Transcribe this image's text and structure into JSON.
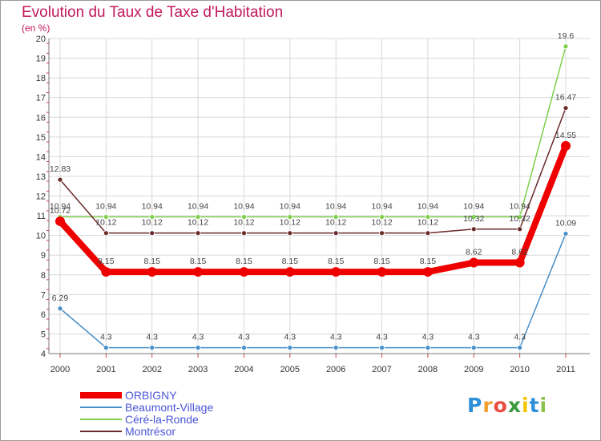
{
  "chart_data": {
    "type": "line",
    "title": "Evolution du Taux de Taxe d'Habitation",
    "subtitle": "(en %)",
    "x": [
      "2000",
      "2001",
      "2002",
      "2003",
      "2004",
      "2005",
      "2006",
      "2007",
      "2008",
      "2009",
      "2010",
      "2011"
    ],
    "ylim": [
      4,
      20
    ],
    "yticks": [
      4,
      5,
      6,
      7,
      8,
      9,
      10,
      11,
      12,
      13,
      14,
      15,
      16,
      17,
      18,
      19,
      20
    ],
    "grid": true,
    "legend_position": "bottom-left",
    "series": [
      {
        "name": "Beaumont-Village",
        "color": "#4a90c8",
        "values": [
          6.29,
          4.3,
          4.3,
          4.3,
          4.3,
          4.3,
          4.3,
          4.3,
          4.3,
          4.3,
          4.3,
          10.09
        ],
        "labels": [
          "6.29",
          "4.3",
          "4.3",
          "4.3",
          "4.3",
          "4.3",
          "4.3",
          "4.3",
          "4.3",
          "4.3",
          "4.3",
          "10.09"
        ]
      },
      {
        "name": "Céré-la-Ronde",
        "color": "#7ed04a",
        "values": [
          10.94,
          10.94,
          10.94,
          10.94,
          10.94,
          10.94,
          10.94,
          10.94,
          10.94,
          10.94,
          10.94,
          19.6
        ],
        "labels": [
          "10.94",
          "10.94",
          "10.94",
          "10.94",
          "10.94",
          "10.94",
          "10.94",
          "10.94",
          "10.94",
          "10.94",
          "10.94",
          "19.6"
        ]
      },
      {
        "name": "Montrésor",
        "color": "#6b2a2a",
        "values": [
          12.83,
          10.12,
          10.12,
          10.12,
          10.12,
          10.12,
          10.12,
          10.12,
          10.12,
          10.32,
          10.32,
          16.47
        ],
        "labels": [
          "12.83",
          "10.12",
          "10.12",
          "10.12",
          "10.12",
          "10.12",
          "10.12",
          "10.12",
          "10.12",
          "10.32",
          "10.32",
          "16.47"
        ]
      },
      {
        "name": "ORBIGNY",
        "color": "#ee0000",
        "values": [
          10.72,
          8.15,
          8.15,
          8.15,
          8.15,
          8.15,
          8.15,
          8.15,
          8.15,
          8.62,
          8.62,
          14.55
        ],
        "labels": [
          "10.72",
          "8.15",
          "8.15",
          "8.15",
          "8.15",
          "8.15",
          "8.15",
          "8.15",
          "8.15",
          "8.62",
          "8.62",
          "14.55"
        ]
      }
    ]
  },
  "legend": {
    "items": [
      {
        "name": "ORBIGNY",
        "color": "#ee0000"
      },
      {
        "name": "Beaumont-Village",
        "color": "#4a90c8"
      },
      {
        "name": "Céré-la-Ronde",
        "color": "#7ed04a"
      },
      {
        "name": "Montrésor",
        "color": "#6b2a2a"
      }
    ]
  },
  "brand": {
    "letters": [
      "P",
      "r",
      "o",
      "x",
      "i",
      "t",
      "i"
    ],
    "colors": [
      "#2e8fd8",
      "#f0a030",
      "#e84c3d",
      "#3b9a3b",
      "#f2c400",
      "#2e8fd8",
      "#8bc34a"
    ]
  }
}
